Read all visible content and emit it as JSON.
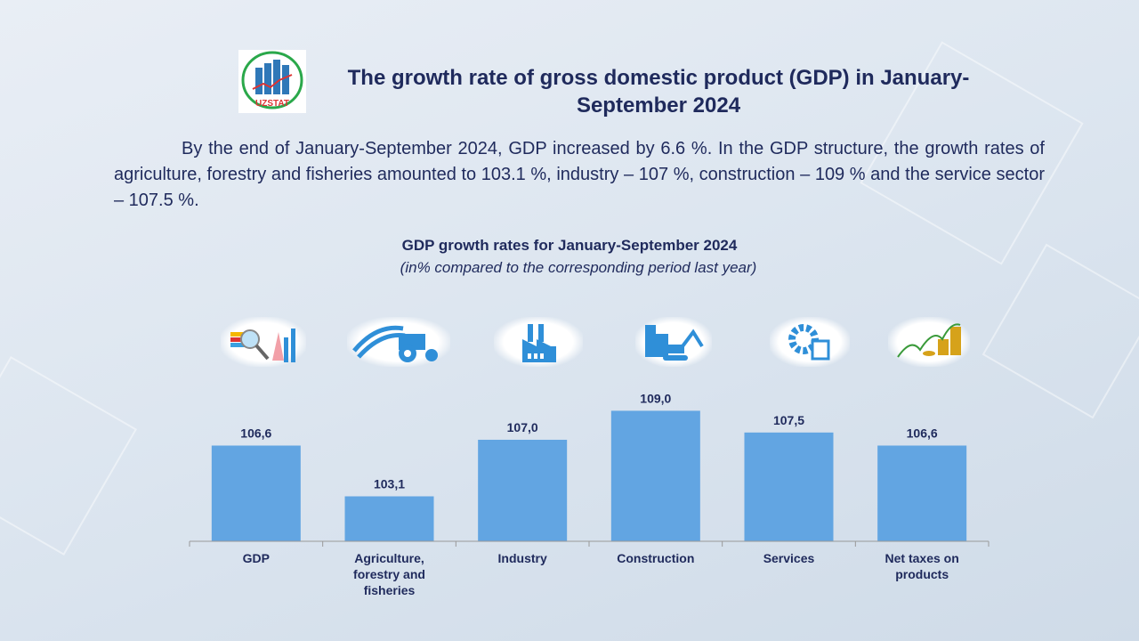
{
  "header": {
    "logo_text": "UZSTAT",
    "title": "The growth rate of gross domestic product (GDP) in January-September 2024"
  },
  "paragraph": "By the end of January-September 2024, GDP increased by 6.6 %. In the GDP structure, the growth rates of agriculture, forestry and fisheries amounted to 103.1 %, industry – 107 %, construction – 109 % and the service sector – 107.5 %.",
  "icons": [
    "gdp-chart-magnifier-icon",
    "agriculture-tractor-icon",
    "industry-factory-icon",
    "construction-excavator-icon",
    "services-gear-icon",
    "net-taxes-coins-icon"
  ],
  "chart_data": {
    "type": "bar",
    "title": "GDP growth rates for January-September 2024",
    "subtitle": "(in% compared to the corresponding period last year)",
    "categories": [
      "GDP",
      "Agriculture, forestry and fisheries",
      "Industry",
      "Construction",
      "Services",
      "Net taxes on products"
    ],
    "values": [
      106.6,
      103.1,
      107.0,
      109.0,
      107.5,
      106.6
    ],
    "data_labels": [
      "106,6",
      "103,1",
      "107,0",
      "109,0",
      "107,5",
      "106,6"
    ],
    "ylim": [
      100,
      110
    ],
    "xlabel": "",
    "ylabel": "",
    "grid": false,
    "bar_color": "#62a5e2"
  }
}
